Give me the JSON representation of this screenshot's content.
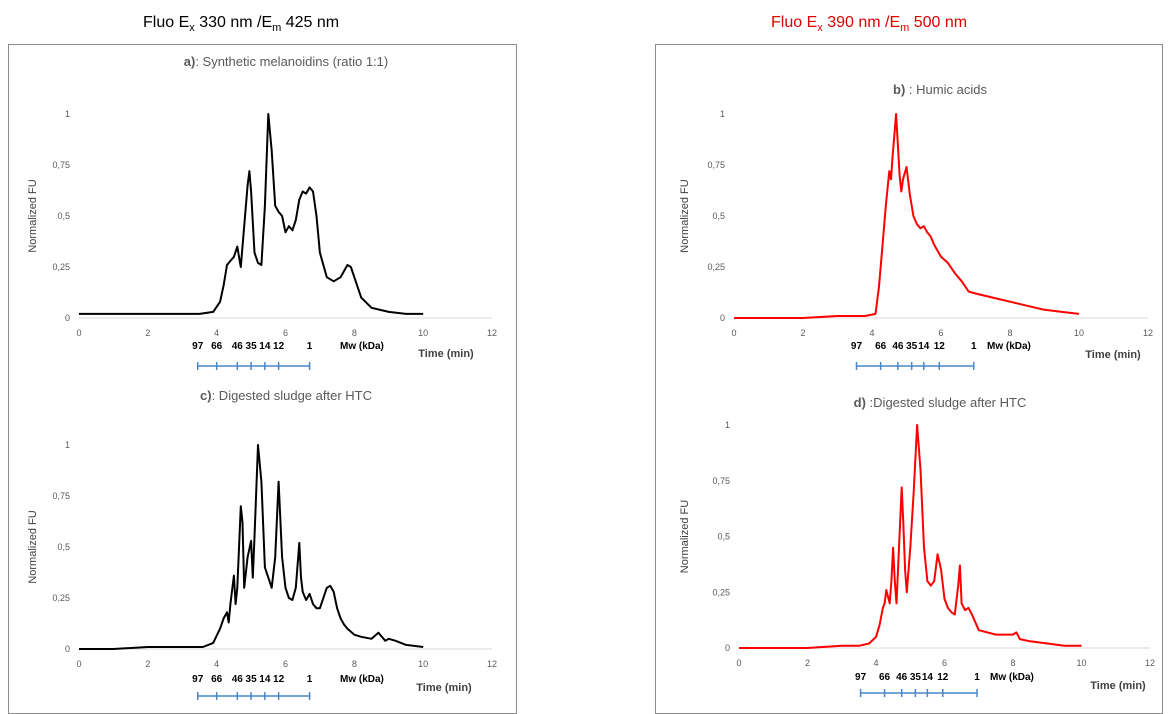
{
  "figure": {
    "left_column_title": {
      "prefix": "Fluo E",
      "ex_sub": "x",
      "middle": " 330 nm /E",
      "em_sub": "m",
      "suffix": " 425 nm"
    },
    "right_column_title": {
      "prefix": "Fluo E",
      "ex_sub": "x",
      "middle": " 390 nm /E",
      "em_sub": "m",
      "suffix": " 500 nm"
    },
    "colors": {
      "black_series": "#000000",
      "red_series": "#ff0000",
      "right_title": "#e00000",
      "scale_bar": "#4a86c8",
      "tick_text": "#595959"
    }
  },
  "chart_data": [
    {
      "id": "a",
      "type": "line",
      "title_bold": "a)",
      "title_rest": ": Synthetic melanoidins (ratio 1:1)",
      "ylabel": "Normalized FU",
      "xlabel": "Time (min)",
      "mw_label": "Mw (kDa)",
      "xlim": [
        0,
        12
      ],
      "ylim": [
        0,
        1
      ],
      "x_ticks": [
        "0",
        "2",
        "4",
        "6",
        "8",
        "10",
        "12"
      ],
      "y_ticks": [
        "0",
        "0,25",
        "0,5",
        "0,75",
        "1"
      ],
      "color": "#000000",
      "mw_markers": [
        {
          "label": "97",
          "t": 3.45
        },
        {
          "label": "66",
          "t": 4.0
        },
        {
          "label": "46",
          "t": 4.6
        },
        {
          "label": "35",
          "t": 5.0
        },
        {
          "label": "14",
          "t": 5.4
        },
        {
          "label": "12",
          "t": 5.8
        },
        {
          "label": "1",
          "t": 6.7
        }
      ],
      "series": [
        {
          "x": [
            0,
            1,
            2,
            3,
            3.5,
            3.9,
            4.1,
            4.2,
            4.3,
            4.4,
            4.5,
            4.6,
            4.65,
            4.7,
            4.8,
            4.9,
            4.95,
            5.0,
            5.1,
            5.2,
            5.3,
            5.4,
            5.5,
            5.6,
            5.7,
            5.8,
            5.9,
            6.0,
            6.1,
            6.2,
            6.3,
            6.4,
            6.5,
            6.6,
            6.7,
            6.8,
            6.9,
            7.0,
            7.2,
            7.4,
            7.6,
            7.7,
            7.8,
            7.9,
            8.0,
            8.2,
            8.5,
            9.0,
            9.5,
            10.0
          ],
          "y": [
            0.02,
            0.02,
            0.02,
            0.02,
            0.02,
            0.03,
            0.08,
            0.16,
            0.26,
            0.28,
            0.3,
            0.35,
            0.3,
            0.25,
            0.45,
            0.65,
            0.72,
            0.62,
            0.32,
            0.27,
            0.26,
            0.55,
            1.0,
            0.82,
            0.55,
            0.52,
            0.5,
            0.42,
            0.45,
            0.43,
            0.48,
            0.58,
            0.62,
            0.61,
            0.64,
            0.62,
            0.5,
            0.32,
            0.2,
            0.18,
            0.2,
            0.23,
            0.26,
            0.25,
            0.2,
            0.1,
            0.05,
            0.03,
            0.02,
            0.02
          ]
        }
      ]
    },
    {
      "id": "b",
      "type": "line",
      "title_bold": "b)",
      "title_rest": " : Humic acids",
      "ylabel": "Normalized FU",
      "xlabel": "Time (min)",
      "mw_label": "Mw (kDa)",
      "xlim": [
        0,
        12
      ],
      "ylim": [
        0,
        1
      ],
      "x_ticks": [
        "0",
        "2",
        "4",
        "6",
        "8",
        "10",
        "12"
      ],
      "y_ticks": [
        "0",
        "0,25",
        "0,5",
        "0,75",
        "1"
      ],
      "color": "#ff0000",
      "mw_markers": [
        {
          "label": "97",
          "t": 3.55
        },
        {
          "label": "66",
          "t": 4.25
        },
        {
          "label": "46",
          "t": 4.75
        },
        {
          "label": "35",
          "t": 5.15
        },
        {
          "label": "14",
          "t": 5.5
        },
        {
          "label": "12",
          "t": 5.95
        },
        {
          "label": "1",
          "t": 6.95
        }
      ],
      "series": [
        {
          "x": [
            0,
            1,
            2,
            3,
            3.8,
            4.1,
            4.2,
            4.3,
            4.4,
            4.5,
            4.55,
            4.6,
            4.7,
            4.8,
            4.85,
            4.9,
            5.0,
            5.1,
            5.2,
            5.3,
            5.4,
            5.5,
            5.6,
            5.7,
            5.8,
            5.9,
            6.0,
            6.2,
            6.4,
            6.6,
            6.8,
            7.0,
            7.5,
            8.0,
            8.5,
            9.0,
            9.5,
            10.0
          ],
          "y": [
            0.0,
            0.0,
            0.0,
            0.01,
            0.01,
            0.02,
            0.15,
            0.35,
            0.55,
            0.72,
            0.68,
            0.8,
            1.0,
            0.7,
            0.62,
            0.68,
            0.74,
            0.6,
            0.5,
            0.46,
            0.44,
            0.45,
            0.42,
            0.4,
            0.36,
            0.33,
            0.3,
            0.27,
            0.22,
            0.18,
            0.13,
            0.12,
            0.1,
            0.08,
            0.06,
            0.04,
            0.03,
            0.02
          ]
        }
      ]
    },
    {
      "id": "c",
      "type": "line",
      "title_bold": "c)",
      "title_rest": ": Digested sludge after HTC",
      "ylabel": "Normalized FU",
      "xlabel": "Time (min)",
      "mw_label": "Mw (kDa)",
      "xlim": [
        0,
        12
      ],
      "ylim": [
        0,
        1
      ],
      "x_ticks": [
        "0",
        "2",
        "4",
        "6",
        "8",
        "10",
        "12"
      ],
      "y_ticks": [
        "0",
        "0,25",
        "0,5",
        "0,75",
        "1"
      ],
      "color": "#000000",
      "mw_markers": [
        {
          "label": "97",
          "t": 3.45
        },
        {
          "label": "66",
          "t": 4.0
        },
        {
          "label": "46",
          "t": 4.6
        },
        {
          "label": "35",
          "t": 5.0
        },
        {
          "label": "14",
          "t": 5.4
        },
        {
          "label": "12",
          "t": 5.8
        },
        {
          "label": "1",
          "t": 6.7
        }
      ],
      "series": [
        {
          "x": [
            0,
            1,
            2,
            3,
            3.6,
            3.9,
            4.1,
            4.2,
            4.3,
            4.35,
            4.4,
            4.5,
            4.55,
            4.6,
            4.7,
            4.75,
            4.8,
            4.9,
            5.0,
            5.05,
            5.1,
            5.2,
            5.3,
            5.4,
            5.5,
            5.6,
            5.7,
            5.8,
            5.9,
            6.0,
            6.1,
            6.2,
            6.3,
            6.4,
            6.45,
            6.5,
            6.6,
            6.7,
            6.8,
            6.9,
            7.0,
            7.2,
            7.3,
            7.4,
            7.5,
            7.6,
            7.7,
            7.8,
            8.0,
            8.2,
            8.5,
            8.7,
            8.8,
            8.9,
            9.0,
            9.2,
            9.5,
            10.0
          ],
          "y": [
            0.0,
            0.0,
            0.01,
            0.01,
            0.01,
            0.03,
            0.1,
            0.15,
            0.18,
            0.13,
            0.22,
            0.36,
            0.22,
            0.3,
            0.7,
            0.62,
            0.3,
            0.45,
            0.53,
            0.35,
            0.55,
            1.0,
            0.82,
            0.4,
            0.35,
            0.3,
            0.45,
            0.82,
            0.45,
            0.3,
            0.25,
            0.24,
            0.3,
            0.52,
            0.35,
            0.28,
            0.24,
            0.27,
            0.22,
            0.2,
            0.2,
            0.3,
            0.31,
            0.28,
            0.2,
            0.15,
            0.12,
            0.1,
            0.07,
            0.06,
            0.05,
            0.08,
            0.06,
            0.04,
            0.05,
            0.04,
            0.02,
            0.01
          ]
        }
      ]
    },
    {
      "id": "d",
      "type": "line",
      "title_bold": "d)",
      "title_rest": " :Digested sludge after HTC",
      "ylabel": "Normalized FU",
      "xlabel": "Time (min)",
      "mw_label": "Mw (kDa)",
      "xlim": [
        0,
        12
      ],
      "ylim": [
        0,
        1
      ],
      "x_ticks": [
        "0",
        "2",
        "4",
        "6",
        "8",
        "10",
        "12"
      ],
      "y_ticks": [
        "0",
        "0,25",
        "0,5",
        "0,75",
        "1"
      ],
      "color": "#ff0000",
      "mw_markers": [
        {
          "label": "97",
          "t": 3.55
        },
        {
          "label": "66",
          "t": 4.25
        },
        {
          "label": "46",
          "t": 4.75
        },
        {
          "label": "35",
          "t": 5.15
        },
        {
          "label": "14",
          "t": 5.5
        },
        {
          "label": "12",
          "t": 5.95
        },
        {
          "label": "1",
          "t": 6.95
        }
      ],
      "series": [
        {
          "x": [
            0,
            1,
            2,
            3,
            3.5,
            3.8,
            4.0,
            4.1,
            4.2,
            4.25,
            4.3,
            4.4,
            4.45,
            4.5,
            4.55,
            4.6,
            4.7,
            4.75,
            4.8,
            4.85,
            4.9,
            5.0,
            5.1,
            5.15,
            5.2,
            5.3,
            5.4,
            5.5,
            5.6,
            5.7,
            5.8,
            5.9,
            6.0,
            6.1,
            6.2,
            6.3,
            6.4,
            6.45,
            6.5,
            6.6,
            6.7,
            6.8,
            7.0,
            7.5,
            8.0,
            8.1,
            8.2,
            8.5,
            9.0,
            9.5,
            10.0
          ],
          "y": [
            0.0,
            0.0,
            0.0,
            0.01,
            0.01,
            0.02,
            0.05,
            0.1,
            0.18,
            0.2,
            0.26,
            0.2,
            0.3,
            0.45,
            0.3,
            0.2,
            0.55,
            0.72,
            0.55,
            0.35,
            0.25,
            0.45,
            0.7,
            0.85,
            1.0,
            0.8,
            0.45,
            0.3,
            0.28,
            0.3,
            0.42,
            0.35,
            0.22,
            0.18,
            0.16,
            0.15,
            0.28,
            0.37,
            0.2,
            0.17,
            0.18,
            0.15,
            0.08,
            0.06,
            0.06,
            0.07,
            0.04,
            0.03,
            0.02,
            0.01,
            0.01
          ]
        }
      ]
    }
  ]
}
